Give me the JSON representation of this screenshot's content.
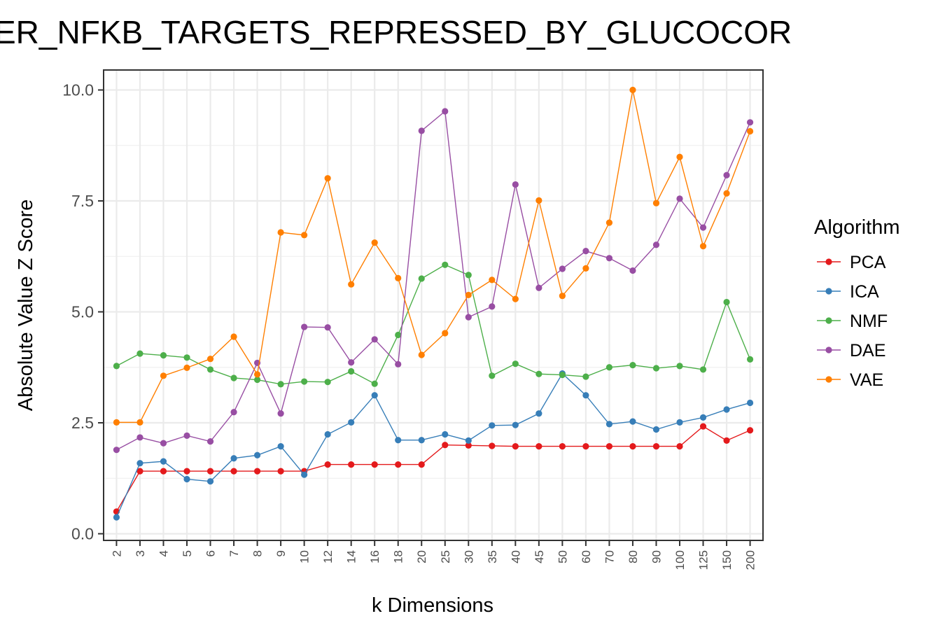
{
  "chart_data": {
    "type": "line",
    "title": "ER_NFKB_TARGETS_REPRESSED_BY_GLUCOCOR",
    "xlabel": "k Dimensions",
    "ylabel": "Absolute Value Z Score",
    "ylim": [
      0,
      10.5
    ],
    "yticks": [
      "0.0",
      "2.5",
      "5.0",
      "7.5",
      "10.0"
    ],
    "grid": true,
    "legend_title": "Algorithm",
    "legend_position": "right",
    "categories": [
      "2",
      "3",
      "4",
      "5",
      "6",
      "7",
      "8",
      "9",
      "10",
      "12",
      "14",
      "16",
      "18",
      "20",
      "25",
      "30",
      "35",
      "40",
      "45",
      "50",
      "60",
      "70",
      "80",
      "90",
      "100",
      "125",
      "150",
      "200"
    ],
    "series": [
      {
        "name": "PCA",
        "color": "#e41a1c",
        "values": [
          0.5,
          1.41,
          1.41,
          1.41,
          1.41,
          1.41,
          1.41,
          1.41,
          1.41,
          1.56,
          1.56,
          1.56,
          1.56,
          1.56,
          2.0,
          1.99,
          1.98,
          1.97,
          1.97,
          1.97,
          1.97,
          1.97,
          1.97,
          1.97,
          1.97,
          2.42,
          2.1,
          2.33
        ]
      },
      {
        "name": "ICA",
        "color": "#377eb8",
        "values": [
          0.37,
          1.59,
          1.63,
          1.23,
          1.18,
          1.7,
          1.77,
          1.97,
          1.33,
          2.24,
          2.51,
          3.12,
          2.11,
          2.11,
          2.24,
          2.1,
          2.44,
          2.45,
          2.71,
          3.61,
          3.12,
          2.47,
          2.53,
          2.35,
          2.51,
          2.62,
          2.8,
          2.95
        ]
      },
      {
        "name": "NMF",
        "color": "#4daf4a",
        "values": [
          3.78,
          4.06,
          4.02,
          3.97,
          3.7,
          3.51,
          3.47,
          3.37,
          3.43,
          3.42,
          3.66,
          3.38,
          4.48,
          5.75,
          6.06,
          5.83,
          3.56,
          3.83,
          3.6,
          3.58,
          3.54,
          3.75,
          3.8,
          3.73,
          3.78,
          3.7,
          5.22,
          3.93
        ]
      },
      {
        "name": "DAE",
        "color": "#984ea3",
        "values": [
          1.89,
          2.17,
          2.04,
          2.21,
          2.08,
          2.74,
          3.85,
          2.71,
          4.66,
          4.65,
          3.86,
          4.38,
          3.82,
          9.08,
          9.52,
          4.88,
          5.12,
          7.87,
          5.54,
          5.97,
          6.37,
          6.21,
          5.93,
          6.51,
          7.55,
          6.9,
          8.08,
          9.27
        ]
      },
      {
        "name": "VAE",
        "color": "#ff7f00",
        "values": [
          2.51,
          2.51,
          3.56,
          3.74,
          3.94,
          4.44,
          3.59,
          6.79,
          6.73,
          8.01,
          5.62,
          6.56,
          5.76,
          4.03,
          4.52,
          5.38,
          5.72,
          5.29,
          7.51,
          5.36,
          5.98,
          7.01,
          10.0,
          7.45,
          8.49,
          6.48,
          7.67,
          9.07
        ]
      }
    ]
  }
}
